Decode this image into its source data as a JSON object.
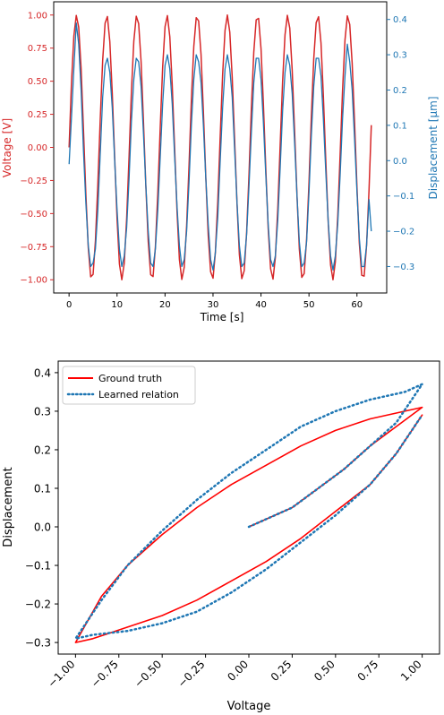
{
  "colors": {
    "voltage": "#d62728",
    "displacement": "#1f77b4",
    "ground_truth": "#ff0000",
    "learned": "#1f77b4",
    "axis": "#000000"
  },
  "chart_data": [
    {
      "type": "line",
      "xlabel": "Time [s]",
      "ylabel_left": "Voltage [V]",
      "ylabel_right": "Displacement [$\\mu$m]",
      "ylabel_right_display": "Displacement [μm]",
      "xlim": [
        -3.2,
        66.2
      ],
      "ylim_left": [
        -1.1,
        1.1
      ],
      "ylim_right": [
        -0.375,
        0.45
      ],
      "xticks": [
        0,
        10,
        20,
        30,
        40,
        50,
        60
      ],
      "xtick_labels": [
        "0",
        "10",
        "20",
        "30",
        "40",
        "50",
        "60"
      ],
      "yticks_left": [
        -1.0,
        -0.75,
        -0.5,
        -0.25,
        0.0,
        0.25,
        0.5,
        0.75,
        1.0
      ],
      "ytick_labels_left": [
        "−1.00",
        "−0.75",
        "−0.50",
        "−0.25",
        "0.00",
        "0.25",
        "0.50",
        "0.75",
        "1.00"
      ],
      "yticks_right": [
        -0.3,
        -0.2,
        -0.1,
        0.0,
        0.1,
        0.2,
        0.3,
        0.4
      ],
      "ytick_labels_right": [
        "−0.3",
        "−0.2",
        "−0.1",
        "0.0",
        "0.1",
        "0.2",
        "0.3",
        "0.4"
      ],
      "grid": false,
      "series": [
        {
          "name": "Voltage",
          "axis": "left",
          "x": [
            0.0,
            0.5,
            1.0,
            1.5,
            2.0,
            2.5,
            3.0,
            3.5,
            4.0,
            4.5,
            5.0,
            5.5,
            6.0,
            6.5,
            7.0,
            7.5,
            8.0,
            8.5,
            9.0,
            9.5,
            10.0,
            10.5,
            11.0,
            11.5,
            12.0,
            12.5,
            13.0,
            13.5,
            14.0,
            14.5,
            15.0,
            15.5,
            16.0,
            16.5,
            17.0,
            17.5,
            18.0,
            18.5,
            19.0,
            19.5,
            20.0,
            20.5,
            21.0,
            21.5,
            22.0,
            22.5,
            23.0,
            23.5,
            24.0,
            24.5,
            25.0,
            25.5,
            26.0,
            26.5,
            27.0,
            27.5,
            28.0,
            28.5,
            29.0,
            29.5,
            30.0,
            30.5,
            31.0,
            31.5,
            32.0,
            32.5,
            33.0,
            33.5,
            34.0,
            34.5,
            35.0,
            35.5,
            36.0,
            36.5,
            37.0,
            37.5,
            38.0,
            38.5,
            39.0,
            39.5,
            40.0,
            40.5,
            41.0,
            41.5,
            42.0,
            42.5,
            43.0,
            43.5,
            44.0,
            44.5,
            45.0,
            45.5,
            46.0,
            46.5,
            47.0,
            47.5,
            48.0,
            48.5,
            49.0,
            49.5,
            50.0,
            50.5,
            51.0,
            51.5,
            52.0,
            52.5,
            53.0,
            53.5,
            54.0,
            54.5,
            55.0,
            55.5,
            56.0,
            56.5,
            57.0,
            57.5,
            58.0,
            58.5,
            59.0,
            59.5,
            60.0,
            60.5,
            61.0,
            61.5,
            62.0,
            62.5,
            63.0
          ],
          "y": [
            0.0,
            0.479,
            0.841,
            0.997,
            0.909,
            0.598,
            0.141,
            -0.351,
            -0.757,
            -0.978,
            -0.959,
            -0.706,
            -0.279,
            0.215,
            0.657,
            0.938,
            0.989,
            0.798,
            0.412,
            -0.075,
            -0.544,
            -0.88,
            -1.0,
            -0.875,
            -0.537,
            -0.066,
            0.42,
            0.803,
            0.991,
            0.935,
            0.65,
            0.206,
            -0.288,
            -0.712,
            -0.961,
            -0.976,
            -0.751,
            -0.343,
            0.15,
            0.604,
            0.913,
            0.996,
            0.837,
            0.471,
            -0.009,
            -0.488,
            -0.846,
            -0.998,
            -0.906,
            -0.591,
            -0.132,
            0.36,
            0.763,
            0.98,
            0.956,
            0.7,
            0.271,
            -0.224,
            -0.663,
            -0.94,
            -0.988,
            -0.793,
            -0.404,
            0.083,
            0.551,
            0.884,
            1.0,
            0.871,
            0.53,
            0.057,
            -0.428,
            -0.808,
            -0.992,
            -0.932,
            -0.644,
            -0.198,
            0.296,
            0.718,
            0.964,
            0.975,
            0.745,
            0.336,
            -0.158,
            -0.611,
            -0.917,
            -0.995,
            -0.832,
            -0.463,
            0.018,
            0.496,
            0.851,
            0.998,
            0.902,
            0.585,
            0.124,
            -0.368,
            -0.768,
            -0.982,
            -0.953,
            -0.694,
            -0.262,
            0.232,
            0.669,
            0.943,
            0.987,
            0.788,
            0.396,
            -0.092,
            -0.559,
            -0.888,
            -1.0,
            -0.866,
            -0.522,
            -0.049,
            0.436,
            0.812,
            0.993,
            0.929,
            0.637,
            0.189,
            -0.305,
            -0.723,
            -0.966,
            -0.973,
            -0.739,
            -0.329,
            0.168
          ]
        },
        {
          "name": "Displacement",
          "axis": "right",
          "x": [
            0.0,
            0.5,
            1.0,
            1.5,
            2.0,
            2.5,
            3.0,
            3.5,
            4.0,
            4.5,
            5.0,
            5.5,
            6.0,
            6.5,
            7.0,
            7.5,
            8.0,
            8.5,
            9.0,
            9.5,
            10.0,
            10.5,
            11.0,
            11.5,
            12.0,
            12.5,
            13.0,
            13.5,
            14.0,
            14.5,
            15.0,
            15.5,
            16.0,
            16.5,
            17.0,
            17.5,
            18.0,
            18.5,
            19.0,
            19.5,
            20.0,
            20.5,
            21.0,
            21.5,
            22.0,
            22.5,
            23.0,
            23.5,
            24.0,
            24.5,
            25.0,
            25.5,
            26.0,
            26.5,
            27.0,
            27.5,
            28.0,
            28.5,
            29.0,
            29.5,
            30.0,
            30.5,
            31.0,
            31.5,
            32.0,
            32.5,
            33.0,
            33.5,
            34.0,
            34.5,
            35.0,
            35.5,
            36.0,
            36.5,
            37.0,
            37.5,
            38.0,
            38.5,
            39.0,
            39.5,
            40.0,
            40.5,
            41.0,
            41.5,
            42.0,
            42.5,
            43.0,
            43.5,
            44.0,
            44.5,
            45.0,
            45.5,
            46.0,
            46.5,
            47.0,
            47.5,
            48.0,
            48.5,
            49.0,
            49.5,
            50.0,
            50.5,
            51.0,
            51.5,
            52.0,
            52.5,
            53.0,
            53.5,
            54.0,
            54.5,
            55.0,
            55.5,
            56.0,
            56.5,
            57.0,
            57.5,
            58.0,
            58.5,
            59.0,
            59.5,
            60.0,
            60.5,
            61.0,
            61.5,
            62.0,
            62.5,
            63.0
          ],
          "y": [
            -0.01,
            0.12,
            0.26,
            0.39,
            0.33,
            0.2,
            0.03,
            -0.12,
            -0.24,
            -0.3,
            -0.29,
            -0.25,
            -0.14,
            0.02,
            0.18,
            0.27,
            0.29,
            0.25,
            0.15,
            0.0,
            -0.14,
            -0.25,
            -0.3,
            -0.27,
            -0.19,
            -0.05,
            0.11,
            0.23,
            0.29,
            0.28,
            0.21,
            0.08,
            -0.07,
            -0.2,
            -0.29,
            -0.3,
            -0.25,
            -0.14,
            0.01,
            0.16,
            0.27,
            0.3,
            0.26,
            0.16,
            0.01,
            -0.13,
            -0.24,
            -0.3,
            -0.28,
            -0.2,
            -0.06,
            0.1,
            0.23,
            0.3,
            0.28,
            0.22,
            0.1,
            -0.05,
            -0.18,
            -0.28,
            -0.31,
            -0.26,
            -0.16,
            0.0,
            0.15,
            0.26,
            0.3,
            0.26,
            0.18,
            0.03,
            -0.12,
            -0.24,
            -0.3,
            -0.29,
            -0.21,
            -0.07,
            0.08,
            0.22,
            0.29,
            0.29,
            0.23,
            0.11,
            -0.04,
            -0.18,
            -0.28,
            -0.3,
            -0.27,
            -0.17,
            -0.02,
            0.14,
            0.25,
            0.3,
            0.27,
            0.19,
            0.05,
            -0.1,
            -0.23,
            -0.3,
            -0.29,
            -0.23,
            -0.09,
            0.07,
            0.21,
            0.29,
            0.29,
            0.24,
            0.12,
            -0.03,
            -0.17,
            -0.27,
            -0.31,
            -0.27,
            -0.18,
            -0.04,
            0.12,
            0.24,
            0.33,
            0.28,
            0.2,
            0.06,
            -0.09,
            -0.22,
            -0.3,
            -0.3,
            -0.24,
            -0.11,
            -0.2
          ]
        }
      ]
    },
    {
      "type": "line",
      "xlabel": "Voltage",
      "ylabel": "Displacement",
      "xlim": [
        -1.1,
        1.1
      ],
      "ylim": [
        -0.33,
        0.43
      ],
      "xticks": [
        -1.0,
        -0.75,
        -0.5,
        -0.25,
        0.0,
        0.25,
        0.5,
        0.75,
        1.0
      ],
      "xtick_labels": [
        "−1.00",
        "−0.75",
        "−0.50",
        "−0.25",
        "0.00",
        "0.25",
        "0.50",
        "0.75",
        "1.00"
      ],
      "yticks": [
        -0.3,
        -0.2,
        -0.1,
        0.0,
        0.1,
        0.2,
        0.3,
        0.4
      ],
      "ytick_labels": [
        "−0.3",
        "−0.2",
        "−0.1",
        "0.0",
        "0.1",
        "0.2",
        "0.3",
        "0.4"
      ],
      "grid": false,
      "legend": {
        "placement": "top-left",
        "entries": [
          {
            "label": "Ground truth",
            "style": "solid",
            "color": "#ff0000"
          },
          {
            "label": "Learned relation",
            "style": "dotted",
            "color": "#1f77b4"
          }
        ]
      },
      "series": [
        {
          "name": "Ground truth",
          "style": "solid",
          "points": [
            [
              0.0,
              0.0
            ],
            [
              0.1,
              0.02
            ],
            [
              0.25,
              0.05
            ],
            [
              0.4,
              0.1
            ],
            [
              0.55,
              0.15
            ],
            [
              0.7,
              0.21
            ],
            [
              0.85,
              0.26
            ],
            [
              1.0,
              0.31
            ],
            [
              0.9,
              0.3
            ],
            [
              0.7,
              0.28
            ],
            [
              0.5,
              0.25
            ],
            [
              0.3,
              0.21
            ],
            [
              0.1,
              0.16
            ],
            [
              -0.1,
              0.11
            ],
            [
              -0.3,
              0.05
            ],
            [
              -0.5,
              -0.02
            ],
            [
              -0.7,
              -0.1
            ],
            [
              -0.85,
              -0.18
            ],
            [
              -1.0,
              -0.3
            ],
            [
              -0.9,
              -0.29
            ],
            [
              -0.7,
              -0.26
            ],
            [
              -0.5,
              -0.23
            ],
            [
              -0.3,
              -0.19
            ],
            [
              -0.1,
              -0.14
            ],
            [
              0.1,
              -0.09
            ],
            [
              0.3,
              -0.03
            ],
            [
              0.5,
              0.04
            ],
            [
              0.7,
              0.11
            ],
            [
              0.85,
              0.19
            ],
            [
              1.0,
              0.29
            ]
          ],
          "envelope_note": "repeated noisy hysteresis loops"
        },
        {
          "name": "Learned relation",
          "style": "dotted",
          "points": [
            [
              0.0,
              0.0
            ],
            [
              0.1,
              0.02
            ],
            [
              0.25,
              0.05
            ],
            [
              0.4,
              0.1
            ],
            [
              0.55,
              0.15
            ],
            [
              0.7,
              0.21
            ],
            [
              0.85,
              0.27
            ],
            [
              1.0,
              0.37
            ],
            [
              0.9,
              0.35
            ],
            [
              0.7,
              0.33
            ],
            [
              0.5,
              0.3
            ],
            [
              0.3,
              0.26
            ],
            [
              0.1,
              0.2
            ],
            [
              -0.1,
              0.14
            ],
            [
              -0.3,
              0.07
            ],
            [
              -0.5,
              -0.01
            ],
            [
              -0.7,
              -0.1
            ],
            [
              -0.85,
              -0.19
            ],
            [
              -1.0,
              -0.29
            ],
            [
              -0.9,
              -0.28
            ],
            [
              -0.7,
              -0.27
            ],
            [
              -0.5,
              -0.25
            ],
            [
              -0.3,
              -0.22
            ],
            [
              -0.1,
              -0.17
            ],
            [
              0.1,
              -0.11
            ],
            [
              0.3,
              -0.04
            ],
            [
              0.5,
              0.03
            ],
            [
              0.7,
              0.11
            ],
            [
              0.85,
              0.19
            ],
            [
              1.0,
              0.29
            ]
          ]
        }
      ]
    }
  ]
}
